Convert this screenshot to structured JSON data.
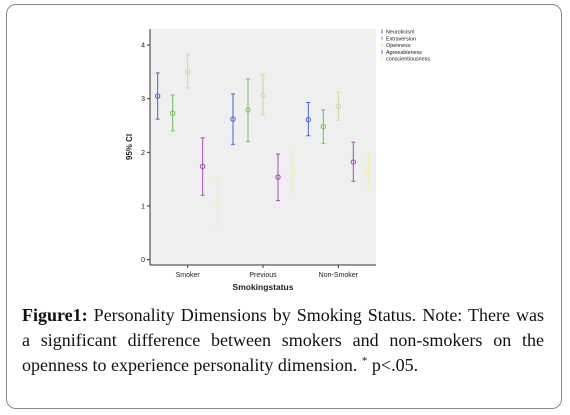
{
  "chart_data": {
    "type": "errorbar",
    "categories": [
      "Smoker",
      "Previous",
      "Non-Smoker"
    ],
    "xlabel": "Smokingstatus",
    "ylabel": "95% CI",
    "ylim": [
      -0.1,
      4.3
    ],
    "yticks": [
      "0",
      "1",
      "2",
      "3",
      "4"
    ],
    "legend_position": "right, outside plot",
    "background": "#efefef",
    "series": [
      {
        "name": "Neuroticism",
        "color": "#4a63c9",
        "mean": [
          3.05,
          2.62,
          2.61
        ],
        "low": [
          2.62,
          2.15,
          2.31
        ],
        "high": [
          3.48,
          3.09,
          2.93
        ]
      },
      {
        "name": "Extraversion",
        "color": "#72c05a",
        "mean": [
          2.73,
          2.79,
          2.48
        ],
        "low": [
          2.4,
          2.2,
          2.17
        ],
        "high": [
          3.07,
          3.37,
          2.79
        ]
      },
      {
        "name": "Openness",
        "color": "#cfd79a",
        "mean": [
          3.5,
          3.06,
          2.86
        ],
        "low": [
          3.2,
          2.7,
          2.6
        ],
        "high": [
          3.82,
          3.45,
          3.12
        ]
      },
      {
        "name": "Agreeableness",
        "color": "#a24fae",
        "mean": [
          1.74,
          1.54,
          1.82
        ],
        "low": [
          1.2,
          1.1,
          1.46
        ],
        "high": [
          2.27,
          1.97,
          2.19
        ]
      },
      {
        "name": "conscientiousness",
        "color": "#f3f0ad",
        "mean": [
          1.07,
          1.64,
          1.65
        ],
        "low": [
          0.6,
          1.23,
          1.34
        ],
        "high": [
          1.55,
          2.05,
          1.96
        ]
      }
    ]
  },
  "caption": {
    "label": "Figure1:",
    "text": " Personality Dimensions by Smoking Status. Note: There was a significant difference between smokers and non-smokers on the openness to experience personality dimension. ",
    "marker": "*",
    "tail": " p<.05."
  }
}
